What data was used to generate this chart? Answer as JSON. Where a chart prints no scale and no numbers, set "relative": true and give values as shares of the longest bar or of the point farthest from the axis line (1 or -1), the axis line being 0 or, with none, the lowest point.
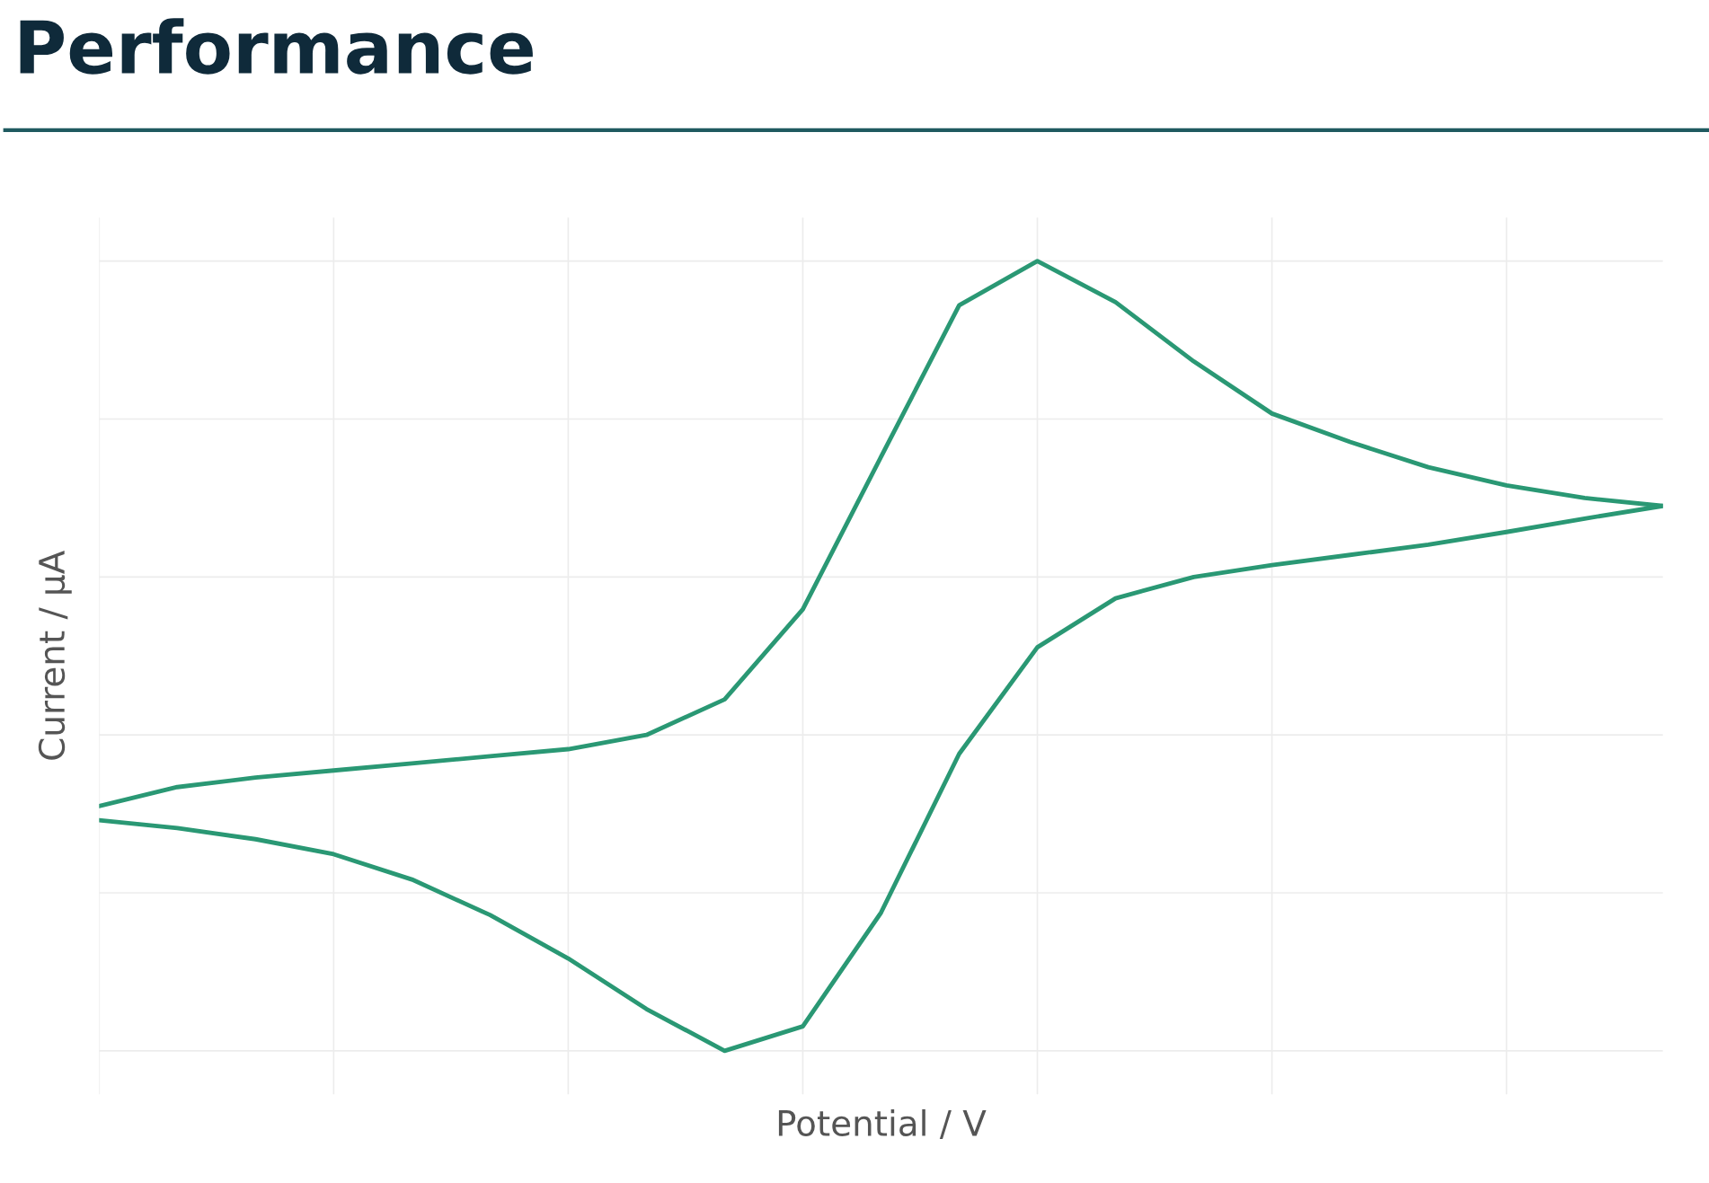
{
  "chart_data": {
    "type": "line",
    "title": "Performance",
    "xlabel": "Potential / V",
    "ylabel": "Current / μA",
    "relative": true,
    "grid": true,
    "tick_labels": false,
    "line_style": "solid",
    "categories": [
      null,
      null,
      null,
      null,
      null,
      null,
      null,
      null,
      null,
      null,
      null,
      null,
      null,
      null,
      null,
      null,
      null,
      null,
      null,
      null,
      null
    ],
    "series": [
      {
        "color": "#2a9874",
        "values": [
          0.31,
          0.334,
          0.346,
          0.355,
          0.364,
          0.373,
          0.382,
          0.4,
          0.445,
          0.559,
          0.752,
          0.944,
          1.0,
          0.948,
          0.873,
          0.807,
          0.771,
          0.739,
          0.716,
          0.7,
          0.69
        ]
      },
      {
        "color": "#2a9874",
        "values": [
          0.292,
          0.282,
          0.268,
          0.249,
          0.217,
          0.172,
          0.117,
          0.053,
          0,
          0.031,
          0.175,
          0.376,
          0.511,
          0.573,
          0.6,
          0.615,
          0.628,
          0.641,
          0.657,
          0.674,
          0.69
        ]
      }
    ]
  }
}
